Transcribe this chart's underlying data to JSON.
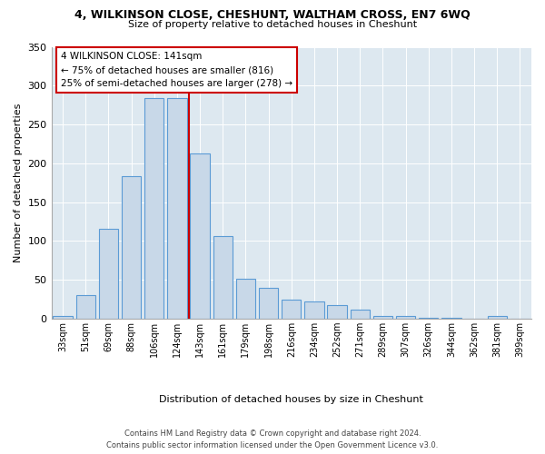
{
  "title_line1": "4, WILKINSON CLOSE, CHESHUNT, WALTHAM CROSS, EN7 6WQ",
  "title_line2": "Size of property relative to detached houses in Cheshunt",
  "xlabel": "Distribution of detached houses by size in Cheshunt",
  "ylabel": "Number of detached properties",
  "bar_labels": [
    "33sqm",
    "51sqm",
    "69sqm",
    "88sqm",
    "106sqm",
    "124sqm",
    "143sqm",
    "161sqm",
    "179sqm",
    "198sqm",
    "216sqm",
    "234sqm",
    "252sqm",
    "271sqm",
    "289sqm",
    "307sqm",
    "326sqm",
    "344sqm",
    "362sqm",
    "381sqm",
    "399sqm"
  ],
  "bar_values": [
    4,
    30,
    116,
    184,
    284,
    284,
    213,
    106,
    51,
    40,
    25,
    22,
    18,
    12,
    3,
    3,
    1,
    1,
    0,
    3,
    0
  ],
  "bar_color": "#c8d8e8",
  "bar_edge_color": "#5b9bd5",
  "vline_color": "#cc0000",
  "annotation_text": "4 WILKINSON CLOSE: 141sqm\n← 75% of detached houses are smaller (816)\n25% of semi-detached houses are larger (278) →",
  "annotation_box_color": "#ffffff",
  "annotation_box_edge": "#cc0000",
  "ylim": [
    0,
    350
  ],
  "yticks": [
    0,
    50,
    100,
    150,
    200,
    250,
    300,
    350
  ],
  "plot_bg_color": "#dde8f0",
  "fig_bg_color": "#ffffff",
  "footer_line1": "Contains HM Land Registry data © Crown copyright and database right 2024.",
  "footer_line2": "Contains public sector information licensed under the Open Government Licence v3.0."
}
